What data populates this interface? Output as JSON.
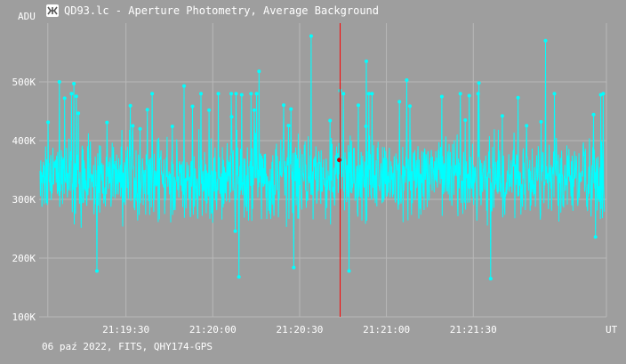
{
  "window": {
    "title": "QD93.lc - Aperture Photometry, Average Background",
    "footer": "06 paź 2022, FITS, QHY174-GPS"
  },
  "colors": {
    "background": "#9e9e9e",
    "series": "#00ffff",
    "cursor": "#ff0000",
    "grid": "#b8b8b8",
    "text": "#ffffff"
  },
  "chart_data": {
    "type": "line",
    "title": "QD93.lc - Aperture Photometry, Average Background",
    "ylabel": "ADU",
    "xlabel": "UT",
    "y_ticks": [
      "100K",
      "200K",
      "300K",
      "400K",
      "500K"
    ],
    "y_tick_values": [
      100000,
      200000,
      300000,
      400000,
      500000
    ],
    "ylim": [
      100000,
      600000
    ],
    "x_ticks": [
      "21:19:30",
      "21:20:00",
      "21:20:30",
      "21:21:00",
      "21:21:30"
    ],
    "x_tick_values_s": [
      76770,
      76800,
      76830,
      76860,
      76890
    ],
    "xlim_s": [
      76740,
      76936
    ],
    "cursor_time": "21:20:44",
    "cursor_time_s": 76844,
    "cursor_value": 367000,
    "grid": true,
    "series": [
      {
        "generation": {
          "points": 1400,
          "mean": 335000,
          "sd": 42000,
          "seed": 93
        },
        "spikes": [
          {
            "t_s": 76747,
            "value": 500000
          },
          {
            "t_s": 76752,
            "value": 497000
          },
          {
            "t_s": 76790,
            "value": 493000
          },
          {
            "t_s": 76810,
            "value": 478000
          },
          {
            "t_s": 76816,
            "value": 518000
          },
          {
            "t_s": 76834,
            "value": 578000
          },
          {
            "t_s": 76844,
            "value": 485000
          },
          {
            "t_s": 76853,
            "value": 535000
          },
          {
            "t_s": 76867,
            "value": 503000
          },
          {
            "t_s": 76892,
            "value": 498000
          },
          {
            "t_s": 76915,
            "value": 570000
          },
          {
            "t_s": 76934,
            "value": 478000
          },
          {
            "t_s": 76760,
            "value": 178000
          },
          {
            "t_s": 76809,
            "value": 168000
          },
          {
            "t_s": 76896,
            "value": 165000
          },
          {
            "t_s": 76847,
            "value": 178000
          },
          {
            "t_s": 76828,
            "value": 184000
          }
        ]
      }
    ]
  }
}
